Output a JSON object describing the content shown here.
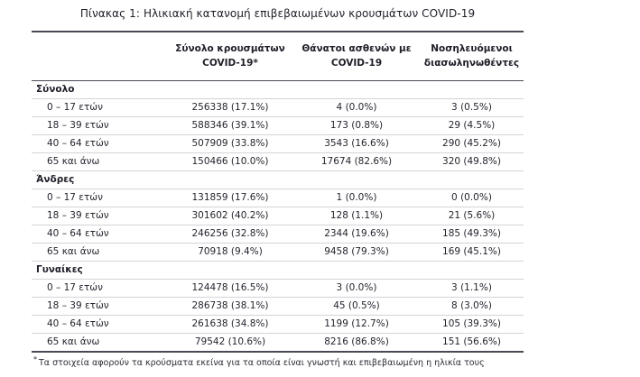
{
  "page": {
    "title": "Πίνακας 1: Ηλικιακή κατανομή επιβεβαιωμένων κρουσμάτων COVID-19",
    "footnote_marker": "*",
    "footnote": "Τα στοιχεία αφορούν τα κρούσματα εκείνα για τα οποία είναι γνωστή και επιβεβαιωμένη η ηλικία τους"
  },
  "table": {
    "columns": [
      {
        "line1": "Σύνολο κρουσμάτων",
        "line2": "COVID-19*"
      },
      {
        "line1": "Θάνατοι ασθενών με",
        "line2": "COVID-19"
      },
      {
        "line1": "Νοσηλευόμενοι",
        "line2": "διασωληνωθέντες"
      }
    ],
    "sections": [
      {
        "label": "Σύνολο",
        "rows": [
          {
            "label": "0 – 17 ετών",
            "cases": "256338 (17.1%)",
            "deaths": "4 (0.0%)",
            "intubated": "3 (0.5%)"
          },
          {
            "label": "18 – 39 ετών",
            "cases": "588346 (39.1%)",
            "deaths": "173 (0.8%)",
            "intubated": "29 (4.5%)"
          },
          {
            "label": "40 – 64 ετών",
            "cases": "507909 (33.8%)",
            "deaths": "3543 (16.6%)",
            "intubated": "290 (45.2%)"
          },
          {
            "label": "65 και άνω",
            "cases": "150466 (10.0%)",
            "deaths": "17674 (82.6%)",
            "intubated": "320 (49.8%)"
          }
        ]
      },
      {
        "label": "Άνδρες",
        "rows": [
          {
            "label": "0 – 17 ετών",
            "cases": "131859 (17.6%)",
            "deaths": "1 (0.0%)",
            "intubated": "0 (0.0%)"
          },
          {
            "label": "18 – 39 ετών",
            "cases": "301602 (40.2%)",
            "deaths": "128 (1.1%)",
            "intubated": "21 (5.6%)"
          },
          {
            "label": "40 – 64 ετών",
            "cases": "246256 (32.8%)",
            "deaths": "2344 (19.6%)",
            "intubated": "185 (49.3%)"
          },
          {
            "label": "65 και άνω",
            "cases": "70918 (9.4%)",
            "deaths": "9458 (79.3%)",
            "intubated": "169 (45.1%)"
          }
        ]
      },
      {
        "label": "Γυναίκες",
        "rows": [
          {
            "label": "0 – 17 ετών",
            "cases": "124478 (16.5%)",
            "deaths": "3 (0.0%)",
            "intubated": "3 (1.1%)"
          },
          {
            "label": "18 – 39 ετών",
            "cases": "286738 (38.1%)",
            "deaths": "45 (0.5%)",
            "intubated": "8 (3.0%)"
          },
          {
            "label": "40 – 64 ετών",
            "cases": "261638 (34.8%)",
            "deaths": "1199 (12.7%)",
            "intubated": "105 (39.3%)"
          },
          {
            "label": "65 και άνω",
            "cases": "79542 (10.6%)",
            "deaths": "8216 (86.8%)",
            "intubated": "151 (56.6%)"
          }
        ]
      }
    ]
  }
}
